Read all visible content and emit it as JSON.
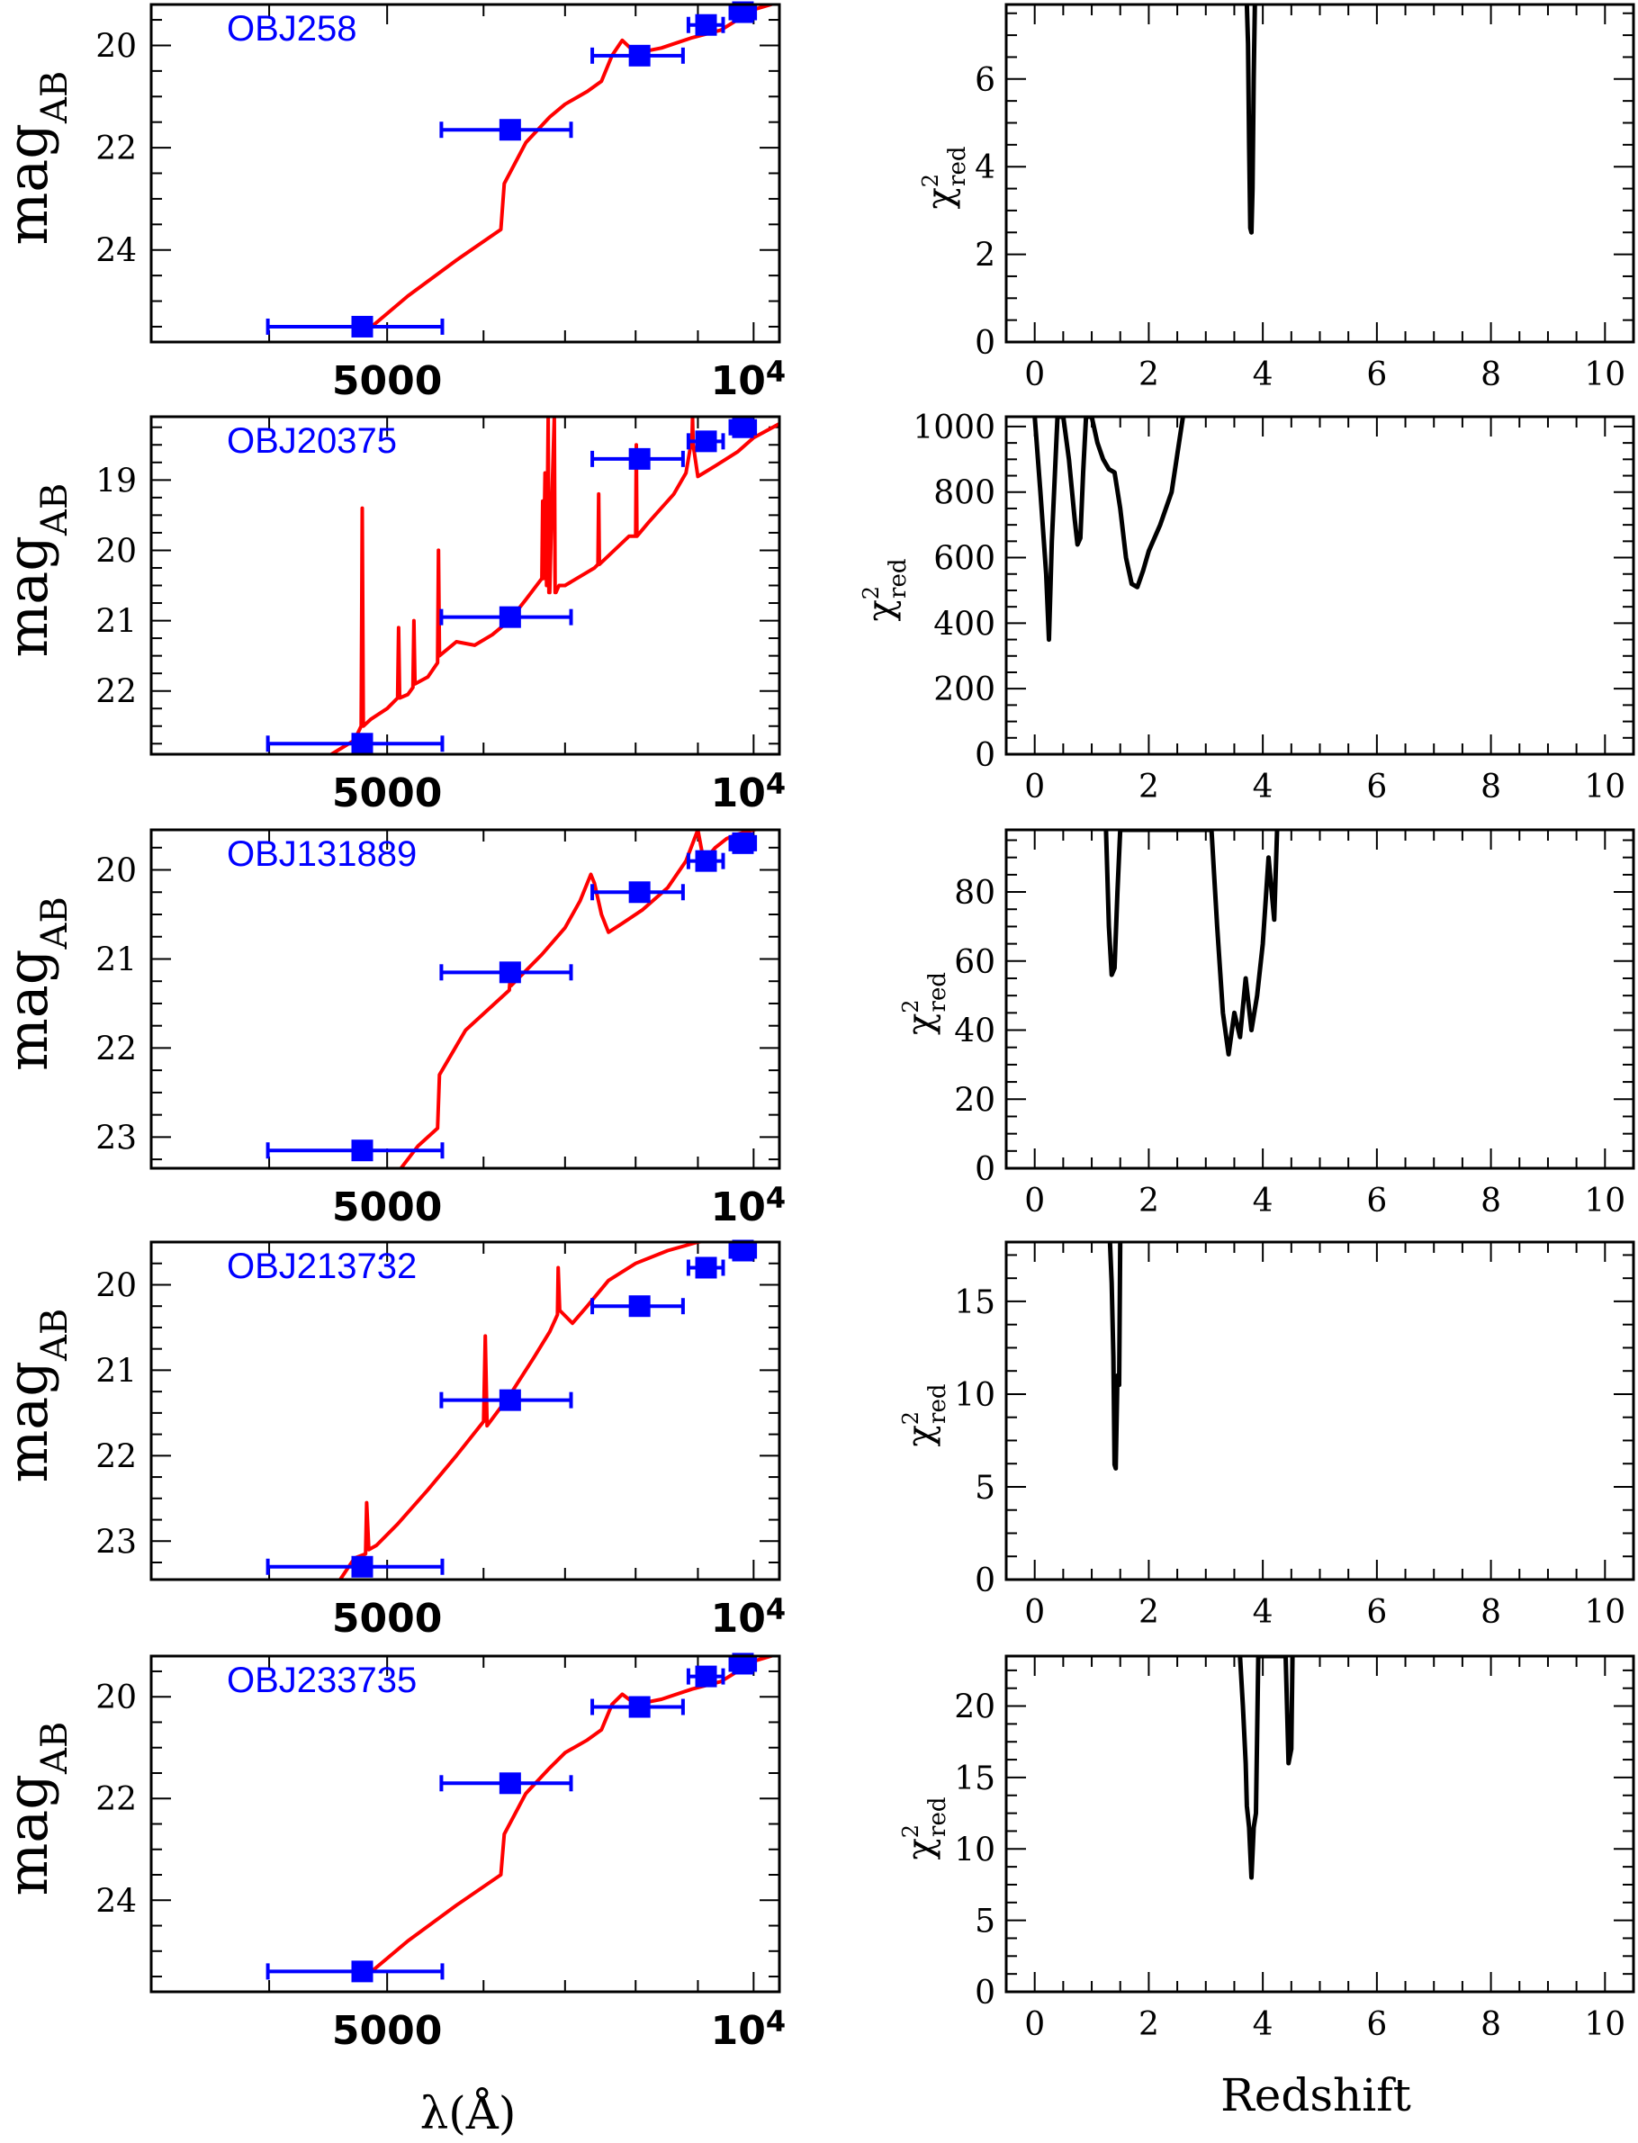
{
  "figure": {
    "left_xlabel": "λ(Å)",
    "right_xlabel": "Redshift",
    "left_ylabel_main": "mag",
    "left_ylabel_sub": "AB",
    "right_ylabel_main": "χ",
    "right_ylabel_sup": "2",
    "right_ylabel_sub": "red",
    "sed_xtick_labels": [
      "5000",
      "10"
    ],
    "sed_xtick_exponent": "4"
  },
  "colors": {
    "model": "#ff0000",
    "photometry": "#0000ff",
    "label": "#0000ff",
    "chi2": "#000000"
  },
  "chart_data": [
    {
      "type": "line",
      "panel": "sed",
      "object": "OBJ258",
      "title": "OBJ258",
      "xlabel": "λ(Å)",
      "ylabel": "mag_AB",
      "xscale": "log",
      "xlim": [
        3200,
        10500
      ],
      "ylim": [
        25.8,
        19.2
      ],
      "yticks": [
        20,
        22,
        24
      ],
      "photometry": {
        "x": [
          4770,
          6310,
          8060,
          9140,
          9800
        ],
        "xerr": [
          780,
          770,
          690,
          300,
          230
        ],
        "y": [
          25.5,
          21.65,
          20.2,
          19.6,
          19.35
        ]
      },
      "model": {
        "x": [
          4800,
          5200,
          5700,
          6200,
          6240,
          6500,
          6800,
          7000,
          7300,
          7500,
          7650,
          7800,
          8000,
          8400,
          8900,
          9400,
          9700,
          10000,
          10500
        ],
        "y": [
          25.6,
          24.9,
          24.2,
          23.6,
          22.7,
          21.9,
          21.4,
          21.15,
          20.9,
          20.7,
          20.2,
          19.9,
          20.15,
          20.05,
          19.85,
          19.7,
          19.5,
          19.3,
          19.15
        ]
      }
    },
    {
      "type": "line",
      "panel": "chi2",
      "object": "OBJ258",
      "xlabel": "Redshift",
      "ylabel": "χ²_red",
      "xlim": [
        -0.5,
        10.5
      ],
      "ylim": [
        0,
        7.7
      ],
      "yticks": [
        0,
        2,
        4,
        6
      ],
      "xticks": [
        0,
        2,
        4,
        6,
        8,
        10
      ],
      "x": [
        3.72,
        3.74,
        3.76,
        3.78,
        3.8,
        3.82,
        3.84,
        3.86
      ],
      "y": [
        7.7,
        6.8,
        4.5,
        2.6,
        2.5,
        3.5,
        6.0,
        7.7
      ]
    },
    {
      "type": "line",
      "panel": "sed",
      "object": "OBJ20375",
      "title": "OBJ20375",
      "xlabel": "λ(Å)",
      "ylabel": "mag_AB",
      "xscale": "log",
      "xlim": [
        3200,
        10500
      ],
      "ylim": [
        22.9,
        18.1
      ],
      "yticks": [
        19,
        20,
        21,
        22
      ],
      "photometry": {
        "x": [
          4770,
          6310,
          8060,
          9140,
          9800
        ],
        "xerr": [
          780,
          770,
          690,
          300,
          230
        ],
        "y": [
          22.75,
          20.95,
          18.7,
          18.45,
          18.25
        ]
      },
      "model": {
        "x": [
          4500,
          4700,
          4760,
          4770,
          4780,
          4850,
          5000,
          5100,
          5110,
          5120,
          5200,
          5250,
          5260,
          5270,
          5400,
          5500,
          5510,
          5520,
          5700,
          5900,
          6100,
          6300,
          6500,
          6700,
          6710,
          6720,
          6740,
          6760,
          6780,
          6790,
          6800,
          6830,
          6860,
          6870,
          6880,
          6920,
          7000,
          7400,
          7450,
          7460,
          7470,
          7900,
          8000,
          8010,
          8020,
          8200,
          8600,
          8800,
          8900,
          8910,
          8920,
          9000,
          9100,
          9300,
          9700,
          10000,
          10500
        ],
        "y": [
          22.9,
          22.7,
          22.5,
          19.4,
          22.5,
          22.4,
          22.25,
          22.1,
          21.1,
          22.1,
          22.05,
          21.95,
          21.0,
          21.9,
          21.8,
          21.6,
          20.0,
          21.5,
          21.3,
          21.35,
          21.2,
          21.0,
          20.7,
          20.4,
          19.3,
          20.4,
          18.9,
          20.5,
          18.1,
          20.6,
          20.6,
          19.2,
          18.1,
          20.6,
          20.6,
          20.5,
          20.5,
          20.25,
          20.2,
          19.2,
          20.2,
          19.8,
          19.8,
          18.5,
          19.8,
          19.6,
          19.2,
          18.9,
          18.4,
          18.1,
          18.5,
          18.95,
          18.9,
          18.8,
          18.6,
          18.4,
          18.2
        ]
      }
    },
    {
      "type": "line",
      "panel": "chi2",
      "object": "OBJ20375",
      "xlabel": "Redshift",
      "ylabel": "χ²_red",
      "xlim": [
        -0.5,
        10.5
      ],
      "ylim": [
        0,
        1030
      ],
      "yticks": [
        0,
        200,
        400,
        600,
        800,
        1000
      ],
      "xticks": [
        0,
        2,
        4,
        6,
        8,
        10
      ],
      "x": [
        0.0,
        0.1,
        0.2,
        0.25,
        0.3,
        0.4,
        0.5,
        0.6,
        0.7,
        0.75,
        0.8,
        0.85,
        0.9,
        1.0,
        1.1,
        1.2,
        1.3,
        1.4,
        1.5,
        1.6,
        1.7,
        1.8,
        1.9,
        2.0,
        2.2,
        2.4,
        2.6
      ],
      "y": [
        1030,
        800,
        550,
        350,
        650,
        1030,
        1030,
        900,
        720,
        640,
        660,
        860,
        1030,
        1030,
        950,
        900,
        870,
        860,
        750,
        600,
        520,
        510,
        560,
        620,
        700,
        800,
        1030
      ]
    },
    {
      "type": "line",
      "panel": "sed",
      "object": "OBJ131889",
      "title": "OBJ131889",
      "xlabel": "λ(Å)",
      "ylabel": "mag_AB",
      "xscale": "log",
      "xlim": [
        3200,
        10500
      ],
      "ylim": [
        23.35,
        19.55
      ],
      "yticks": [
        20,
        21,
        22,
        23
      ],
      "photometry": {
        "x": [
          4770,
          6310,
          8060,
          9140,
          9800
        ],
        "xerr": [
          780,
          770,
          690,
          300,
          230
        ],
        "y": [
          23.15,
          21.15,
          20.25,
          19.9,
          19.7
        ]
      },
      "model": {
        "x": [
          5100,
          5300,
          5500,
          5520,
          5800,
          6300,
          6310,
          6320,
          6700,
          7000,
          7200,
          7350,
          7400,
          7500,
          7600,
          7800,
          8100,
          8500,
          8800,
          9000,
          9100,
          9300,
          9500,
          9700,
          10000,
          10500
        ],
        "y": [
          23.4,
          23.1,
          22.9,
          22.3,
          21.8,
          21.35,
          21.2,
          21.3,
          20.95,
          20.65,
          20.35,
          20.05,
          20.15,
          20.5,
          20.7,
          20.6,
          20.45,
          20.2,
          19.9,
          19.55,
          19.9,
          19.75,
          19.65,
          19.6,
          19.55,
          19.5
        ]
      }
    },
    {
      "type": "line",
      "panel": "chi2",
      "object": "OBJ131889",
      "xlabel": "Redshift",
      "ylabel": "χ²_red",
      "xlim": [
        -0.5,
        10.5
      ],
      "ylim": [
        0,
        98
      ],
      "yticks": [
        0,
        20,
        40,
        60,
        80
      ],
      "xticks": [
        0,
        2,
        4,
        6,
        8,
        10
      ],
      "x": [
        1.25,
        1.3,
        1.35,
        1.4,
        1.45,
        1.5,
        1.55,
        3.1,
        3.2,
        3.3,
        3.4,
        3.5,
        3.6,
        3.7,
        3.8,
        3.9,
        4.0,
        4.1,
        4.2,
        4.25
      ],
      "y": [
        98,
        70,
        56,
        58,
        80,
        98,
        98,
        98,
        70,
        45,
        33,
        45,
        38,
        55,
        40,
        50,
        65,
        90,
        72,
        98
      ]
    },
    {
      "type": "line",
      "panel": "sed",
      "object": "OBJ213732",
      "title": "OBJ213732",
      "xlabel": "λ(Å)",
      "ylabel": "mag_AB",
      "xscale": "log",
      "xlim": [
        3200,
        10500
      ],
      "ylim": [
        23.45,
        19.5
      ],
      "yticks": [
        20,
        21,
        22,
        23
      ],
      "photometry": {
        "x": [
          4770,
          6310,
          8060,
          9140,
          9800
        ],
        "xerr": [
          780,
          770,
          690,
          300,
          230
        ],
        "y": [
          23.3,
          21.35,
          20.25,
          19.8,
          19.6
        ]
      },
      "model": {
        "x": [
          4550,
          4700,
          4800,
          4810,
          4830,
          4900,
          5100,
          5400,
          5700,
          6000,
          6020,
          6040,
          6300,
          6600,
          6800,
          6900,
          6910,
          6930,
          7100,
          7300,
          7600,
          8000,
          8500,
          9000,
          9500,
          10000,
          10500
        ],
        "y": [
          23.5,
          23.2,
          23.15,
          22.55,
          23.1,
          23.05,
          22.8,
          22.4,
          22.0,
          21.6,
          20.6,
          21.65,
          21.3,
          20.85,
          20.55,
          20.35,
          19.8,
          20.3,
          20.45,
          20.25,
          19.95,
          19.75,
          19.6,
          19.5,
          19.45,
          19.45,
          19.4
        ]
      }
    },
    {
      "type": "line",
      "panel": "chi2",
      "object": "OBJ213732",
      "xlabel": "Redshift",
      "ylabel": "χ²_red",
      "xlim": [
        -0.5,
        10.5
      ],
      "ylim": [
        0,
        18.2
      ],
      "yticks": [
        0,
        5,
        10,
        15
      ],
      "xticks": [
        0,
        2,
        4,
        6,
        8,
        10
      ],
      "x": [
        1.32,
        1.35,
        1.38,
        1.4,
        1.42,
        1.45,
        1.48,
        1.5
      ],
      "y": [
        18.2,
        16,
        12,
        6.2,
        6.0,
        11,
        10.5,
        18.2
      ]
    },
    {
      "type": "line",
      "panel": "sed",
      "object": "OBJ233735",
      "title": "OBJ233735",
      "xlabel": "λ(Å)",
      "ylabel": "mag_AB",
      "xscale": "log",
      "xlim": [
        3200,
        10500
      ],
      "ylim": [
        25.8,
        19.2
      ],
      "yticks": [
        20,
        22,
        24
      ],
      "photometry": {
        "x": [
          4770,
          6310,
          8060,
          9140,
          9800
        ],
        "xerr": [
          780,
          770,
          690,
          300,
          230
        ],
        "y": [
          25.4,
          21.7,
          20.2,
          19.6,
          19.35
        ]
      },
      "model": {
        "x": [
          4800,
          5200,
          5700,
          6200,
          6240,
          6500,
          6800,
          7000,
          7300,
          7500,
          7650,
          7800,
          8000,
          8400,
          8900,
          9400,
          9700,
          10000,
          10500
        ],
        "y": [
          25.5,
          24.8,
          24.1,
          23.5,
          22.7,
          21.9,
          21.4,
          21.1,
          20.85,
          20.65,
          20.15,
          19.95,
          20.15,
          20.05,
          19.85,
          19.7,
          19.5,
          19.3,
          19.15
        ]
      }
    },
    {
      "type": "line",
      "panel": "chi2",
      "object": "OBJ233735",
      "xlabel": "Redshift",
      "ylabel": "χ²_red",
      "xlim": [
        -0.5,
        10.5
      ],
      "ylim": [
        0,
        23.5
      ],
      "yticks": [
        0,
        5,
        10,
        15,
        20
      ],
      "xticks": [
        0,
        2,
        4,
        6,
        8,
        10
      ],
      "x": [
        3.6,
        3.65,
        3.7,
        3.72,
        3.76,
        3.8,
        3.84,
        3.88,
        3.92,
        4.4,
        4.45,
        4.5,
        4.52
      ],
      "y": [
        23.5,
        20,
        16,
        13,
        11.5,
        8.0,
        11.5,
        12.5,
        23.5,
        23.5,
        16,
        17,
        23.5
      ]
    }
  ]
}
